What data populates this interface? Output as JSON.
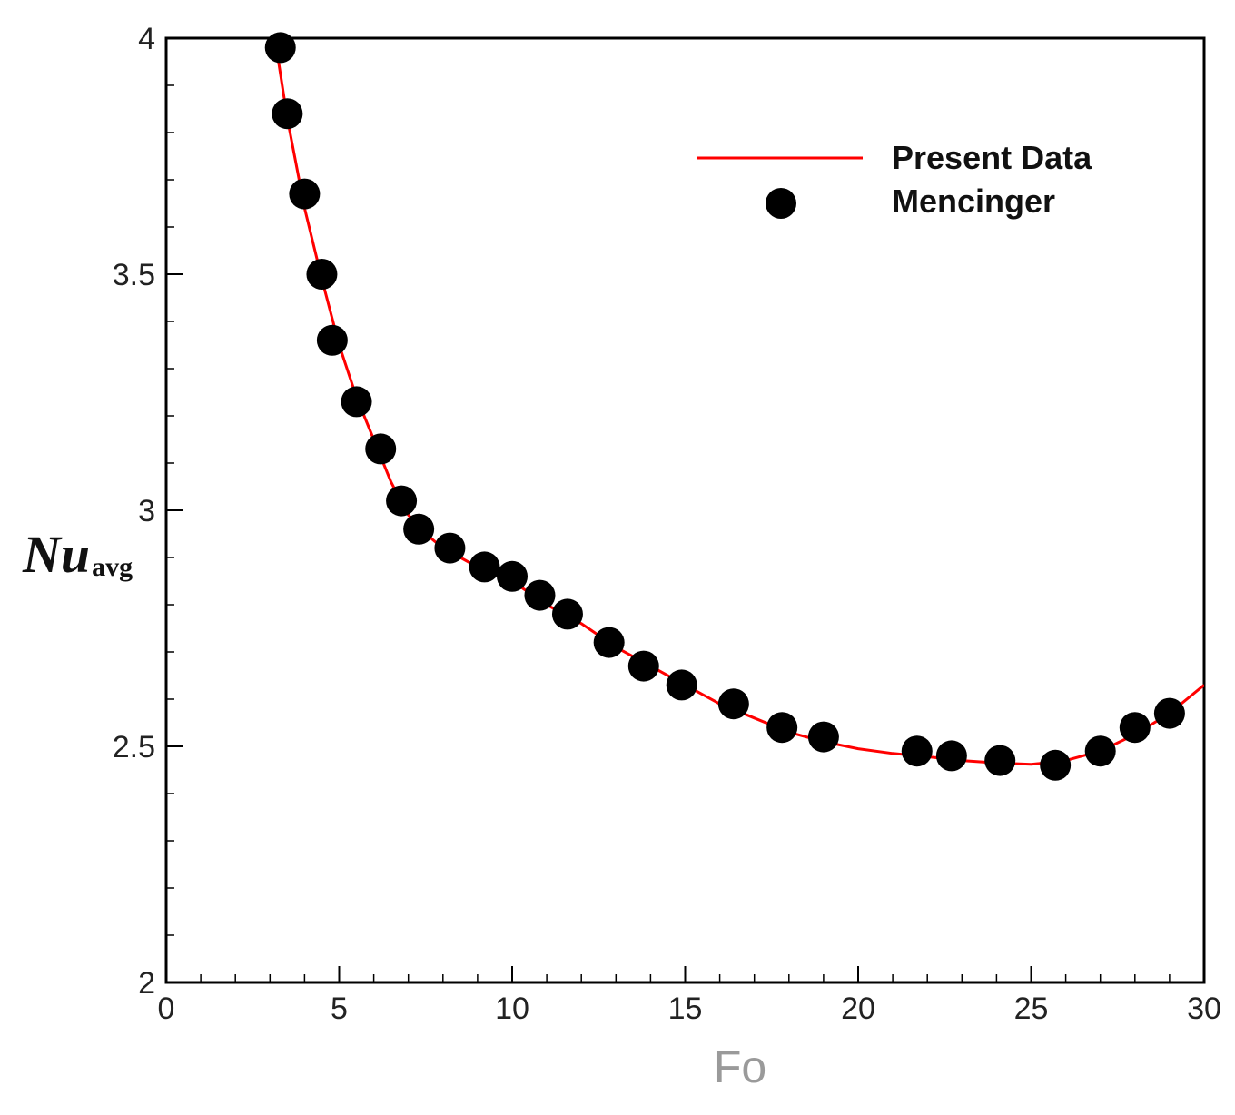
{
  "chart_data": {
    "type": "line",
    "xlabel": "Fo",
    "ylabel": {
      "main": "Nu",
      "sub": "avg"
    },
    "xlim": [
      0,
      30
    ],
    "ylim": [
      2,
      4
    ],
    "xticks": [
      0,
      5,
      10,
      15,
      20,
      25,
      30
    ],
    "yticks": [
      2,
      2.5,
      3,
      3.5,
      4
    ],
    "x_minor_step": 1,
    "y_minor_step": 0.1,
    "grid": false,
    "legend_position": "top-right",
    "series": [
      {
        "name": "Present Data",
        "style": "line",
        "color": "#ff0000",
        "x": [
          3.1,
          3.5,
          4.0,
          4.5,
          5.0,
          5.5,
          6.0,
          6.5,
          7.0,
          7.5,
          8.0,
          9.0,
          10.0,
          11.0,
          12.0,
          13.0,
          14.0,
          15.0,
          16.0,
          17.0,
          18.0,
          19.0,
          20.0,
          21.0,
          22.0,
          23.0,
          24.0,
          25.0,
          26.0,
          27.0,
          28.0,
          29.0,
          30.0
        ],
        "y": [
          4.02,
          3.83,
          3.64,
          3.49,
          3.35,
          3.24,
          3.15,
          3.06,
          2.99,
          2.95,
          2.92,
          2.88,
          2.85,
          2.8,
          2.76,
          2.71,
          2.67,
          2.63,
          2.59,
          2.56,
          2.53,
          2.51,
          2.495,
          2.485,
          2.478,
          2.47,
          2.465,
          2.462,
          2.47,
          2.49,
          2.525,
          2.57,
          2.63
        ]
      },
      {
        "name": "Mencinger",
        "style": "markers",
        "color": "#000000",
        "x": [
          3.3,
          3.5,
          4.0,
          4.5,
          4.8,
          5.5,
          6.2,
          6.8,
          7.3,
          8.2,
          9.2,
          10.0,
          10.8,
          11.6,
          12.8,
          13.8,
          14.9,
          16.4,
          17.8,
          19.0,
          21.7,
          22.7,
          24.1,
          25.7,
          27.0,
          28.0,
          29.0
        ],
        "y": [
          3.98,
          3.84,
          3.67,
          3.5,
          3.36,
          3.23,
          3.13,
          3.02,
          2.96,
          2.92,
          2.88,
          2.86,
          2.82,
          2.78,
          2.72,
          2.67,
          2.63,
          2.59,
          2.54,
          2.52,
          2.49,
          2.48,
          2.47,
          2.46,
          2.49,
          2.54,
          2.57
        ]
      }
    ]
  }
}
